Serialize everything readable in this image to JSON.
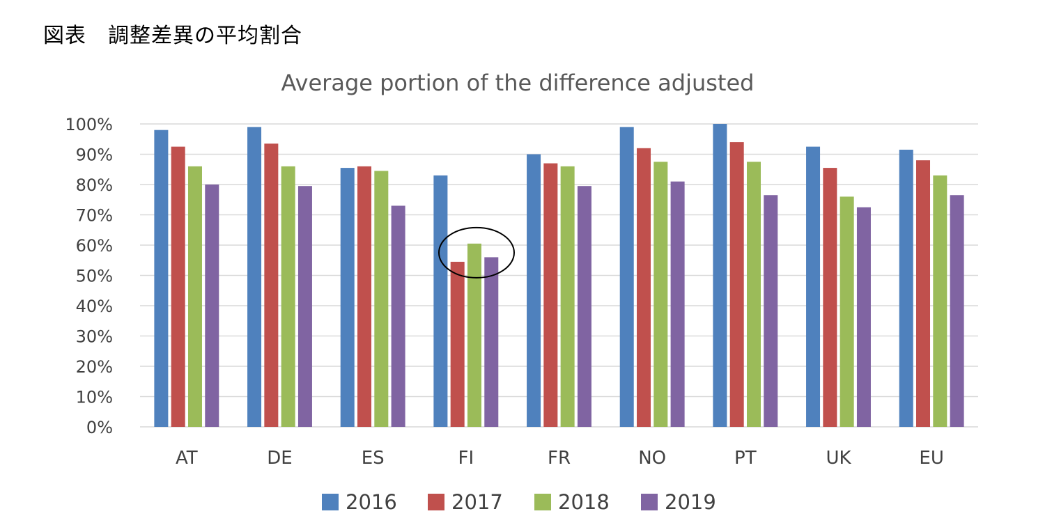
{
  "caption": "図表　調整差異の平均割合",
  "colors": {
    "s2016": "#4F81BD",
    "s2017": "#C0504D",
    "s2018": "#9BBB59",
    "s2019": "#8064A2",
    "grid": "#D9D9D9",
    "highlight_circle": "#000000"
  },
  "chart_data": {
    "type": "bar",
    "title": "Average portion of the difference adjusted",
    "xlabel": "",
    "ylabel": "",
    "ylim": [
      0,
      100
    ],
    "yticks": [
      "0%",
      "10%",
      "20%",
      "30%",
      "40%",
      "50%",
      "60%",
      "70%",
      "80%",
      "90%",
      "100%"
    ],
    "categories": [
      "AT",
      "DE",
      "ES",
      "FI",
      "FR",
      "NO",
      "PT",
      "UK",
      "EU"
    ],
    "series": [
      {
        "name": "2016",
        "values": [
          98,
          99,
          85.5,
          83,
          90,
          99,
          100,
          92.5,
          91.5
        ]
      },
      {
        "name": "2017",
        "values": [
          92.5,
          93.5,
          86,
          54.5,
          87,
          92,
          94,
          85.5,
          88
        ]
      },
      {
        "name": "2018",
        "values": [
          86,
          86,
          84.5,
          60.5,
          86,
          87.5,
          87.5,
          76,
          83
        ]
      },
      {
        "name": "2019",
        "values": [
          80,
          79.5,
          73,
          56,
          79.5,
          81,
          76.5,
          72.5,
          76.5
        ]
      }
    ],
    "grid": true,
    "legend_position": "bottom",
    "annotation": "circle around FI 2017–2019 bars"
  }
}
